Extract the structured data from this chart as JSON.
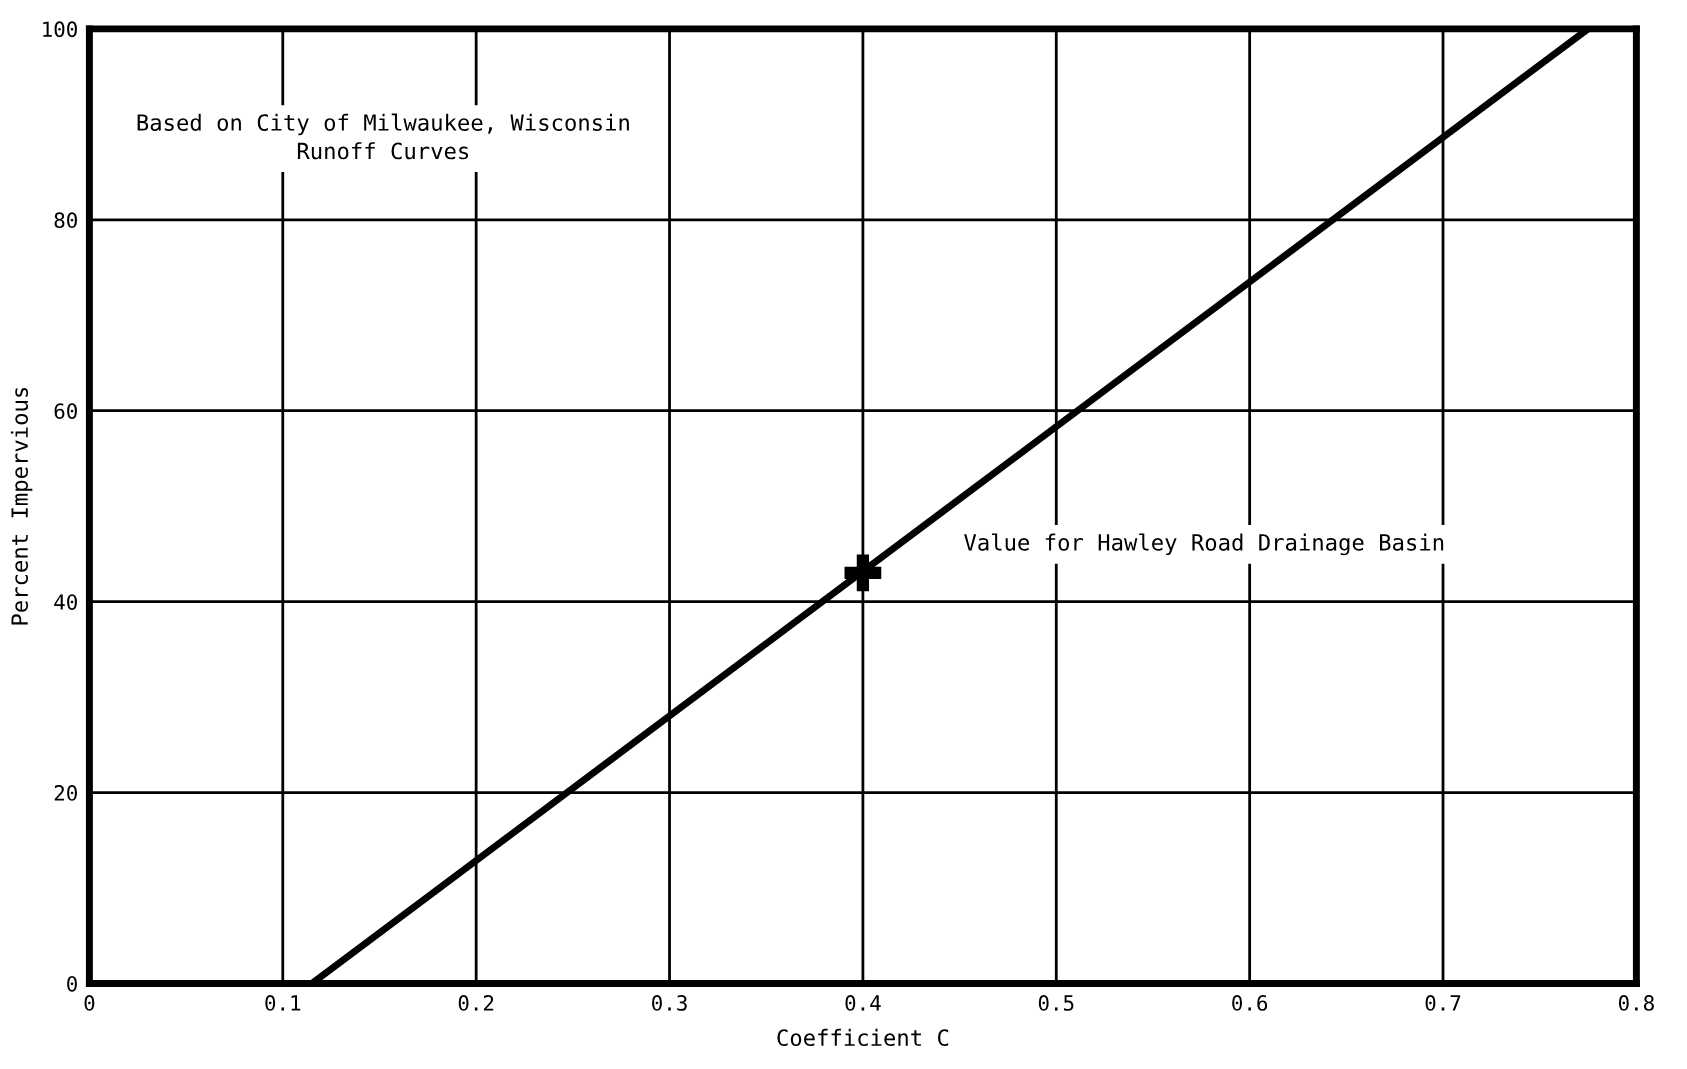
{
  "chart_data": {
    "type": "line",
    "xlabel": "Coefficient C",
    "ylabel": "Percent Impervious",
    "series": [
      {
        "type": "line",
        "color": "#000000",
        "x": [
          0.115,
          0.775
        ],
        "values": [
          0,
          100
        ],
        "marker": "none",
        "line_style": "solid"
      },
      {
        "type": "scatter",
        "color": "#000000",
        "x": [
          0.4
        ],
        "values": [
          43
        ],
        "marker": "cross"
      }
    ],
    "annotations": [
      "Based on City of Milwaukee, Wisconsin\nRunoff Curves",
      "Value for Hawley Road Drainage Basin"
    ],
    "xlim": [
      0,
      0.8
    ],
    "xticks": [
      0,
      0.1,
      0.2,
      0.3,
      0.4,
      0.5,
      0.6,
      0.7,
      0.8
    ],
    "ylim": [
      0,
      100
    ],
    "yticks": [
      0,
      20,
      40,
      60,
      80,
      100
    ],
    "grid": true,
    "legend": false
  }
}
